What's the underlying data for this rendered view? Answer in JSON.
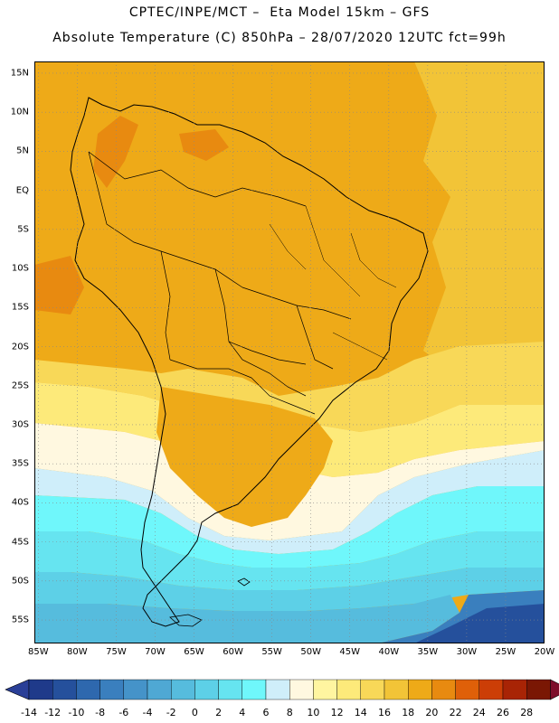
{
  "header": {
    "line1": "CPTEC/INPE/MCT –  Eta Model 15km – GFS",
    "line2": "Absolute Temperature (C) 850hPa – 28/07/2020 12UTC fct=99h"
  },
  "map": {
    "lat_labels": [
      "15N",
      "10N",
      "5N",
      "EQ",
      "5S",
      "10S",
      "15S",
      "20S",
      "25S",
      "30S",
      "35S",
      "40S",
      "45S",
      "50S",
      "55S"
    ],
    "lat_values": [
      15,
      10,
      5,
      0,
      -5,
      -10,
      -15,
      -20,
      -25,
      -30,
      -35,
      -40,
      -45,
      -50,
      -55
    ],
    "lon_labels": [
      "85W",
      "80W",
      "75W",
      "70W",
      "65W",
      "60W",
      "55W",
      "50W",
      "45W",
      "40W",
      "35W",
      "30W",
      "25W",
      "20W"
    ],
    "lon_values": [
      -85,
      -80,
      -75,
      -70,
      -65,
      -60,
      -55,
      -50,
      -45,
      -40,
      -35,
      -30,
      -25,
      -20
    ],
    "lon_range": [
      -85.5,
      -20
    ],
    "lat_range": [
      -58,
      16.5
    ],
    "gridlines": "dotted"
  },
  "colorbar": {
    "labels": [
      "-14",
      "-12",
      "-10",
      "-8",
      "-6",
      "-4",
      "-2",
      "0",
      "2",
      "4",
      "6",
      "8",
      "10",
      "12",
      "14",
      "16",
      "18",
      "20",
      "22",
      "24",
      "26",
      "28"
    ],
    "colors": [
      "#1f3a8a",
      "#25509c",
      "#2e68ae",
      "#3a7fbe",
      "#4593c9",
      "#4fa8d4",
      "#56bcdd",
      "#5dd0e7",
      "#66e4f0",
      "#6ff7fb",
      "#cfeefa",
      "#fff8e0",
      "#fff5a0",
      "#fdea7a",
      "#f8d858",
      "#f2c437",
      "#eeaa18",
      "#e88a10",
      "#df6009",
      "#cc3e06",
      "#a82405",
      "#7a1704"
    ],
    "under_color": "#2a3f97",
    "over_color": "#7e0d2a"
  }
}
